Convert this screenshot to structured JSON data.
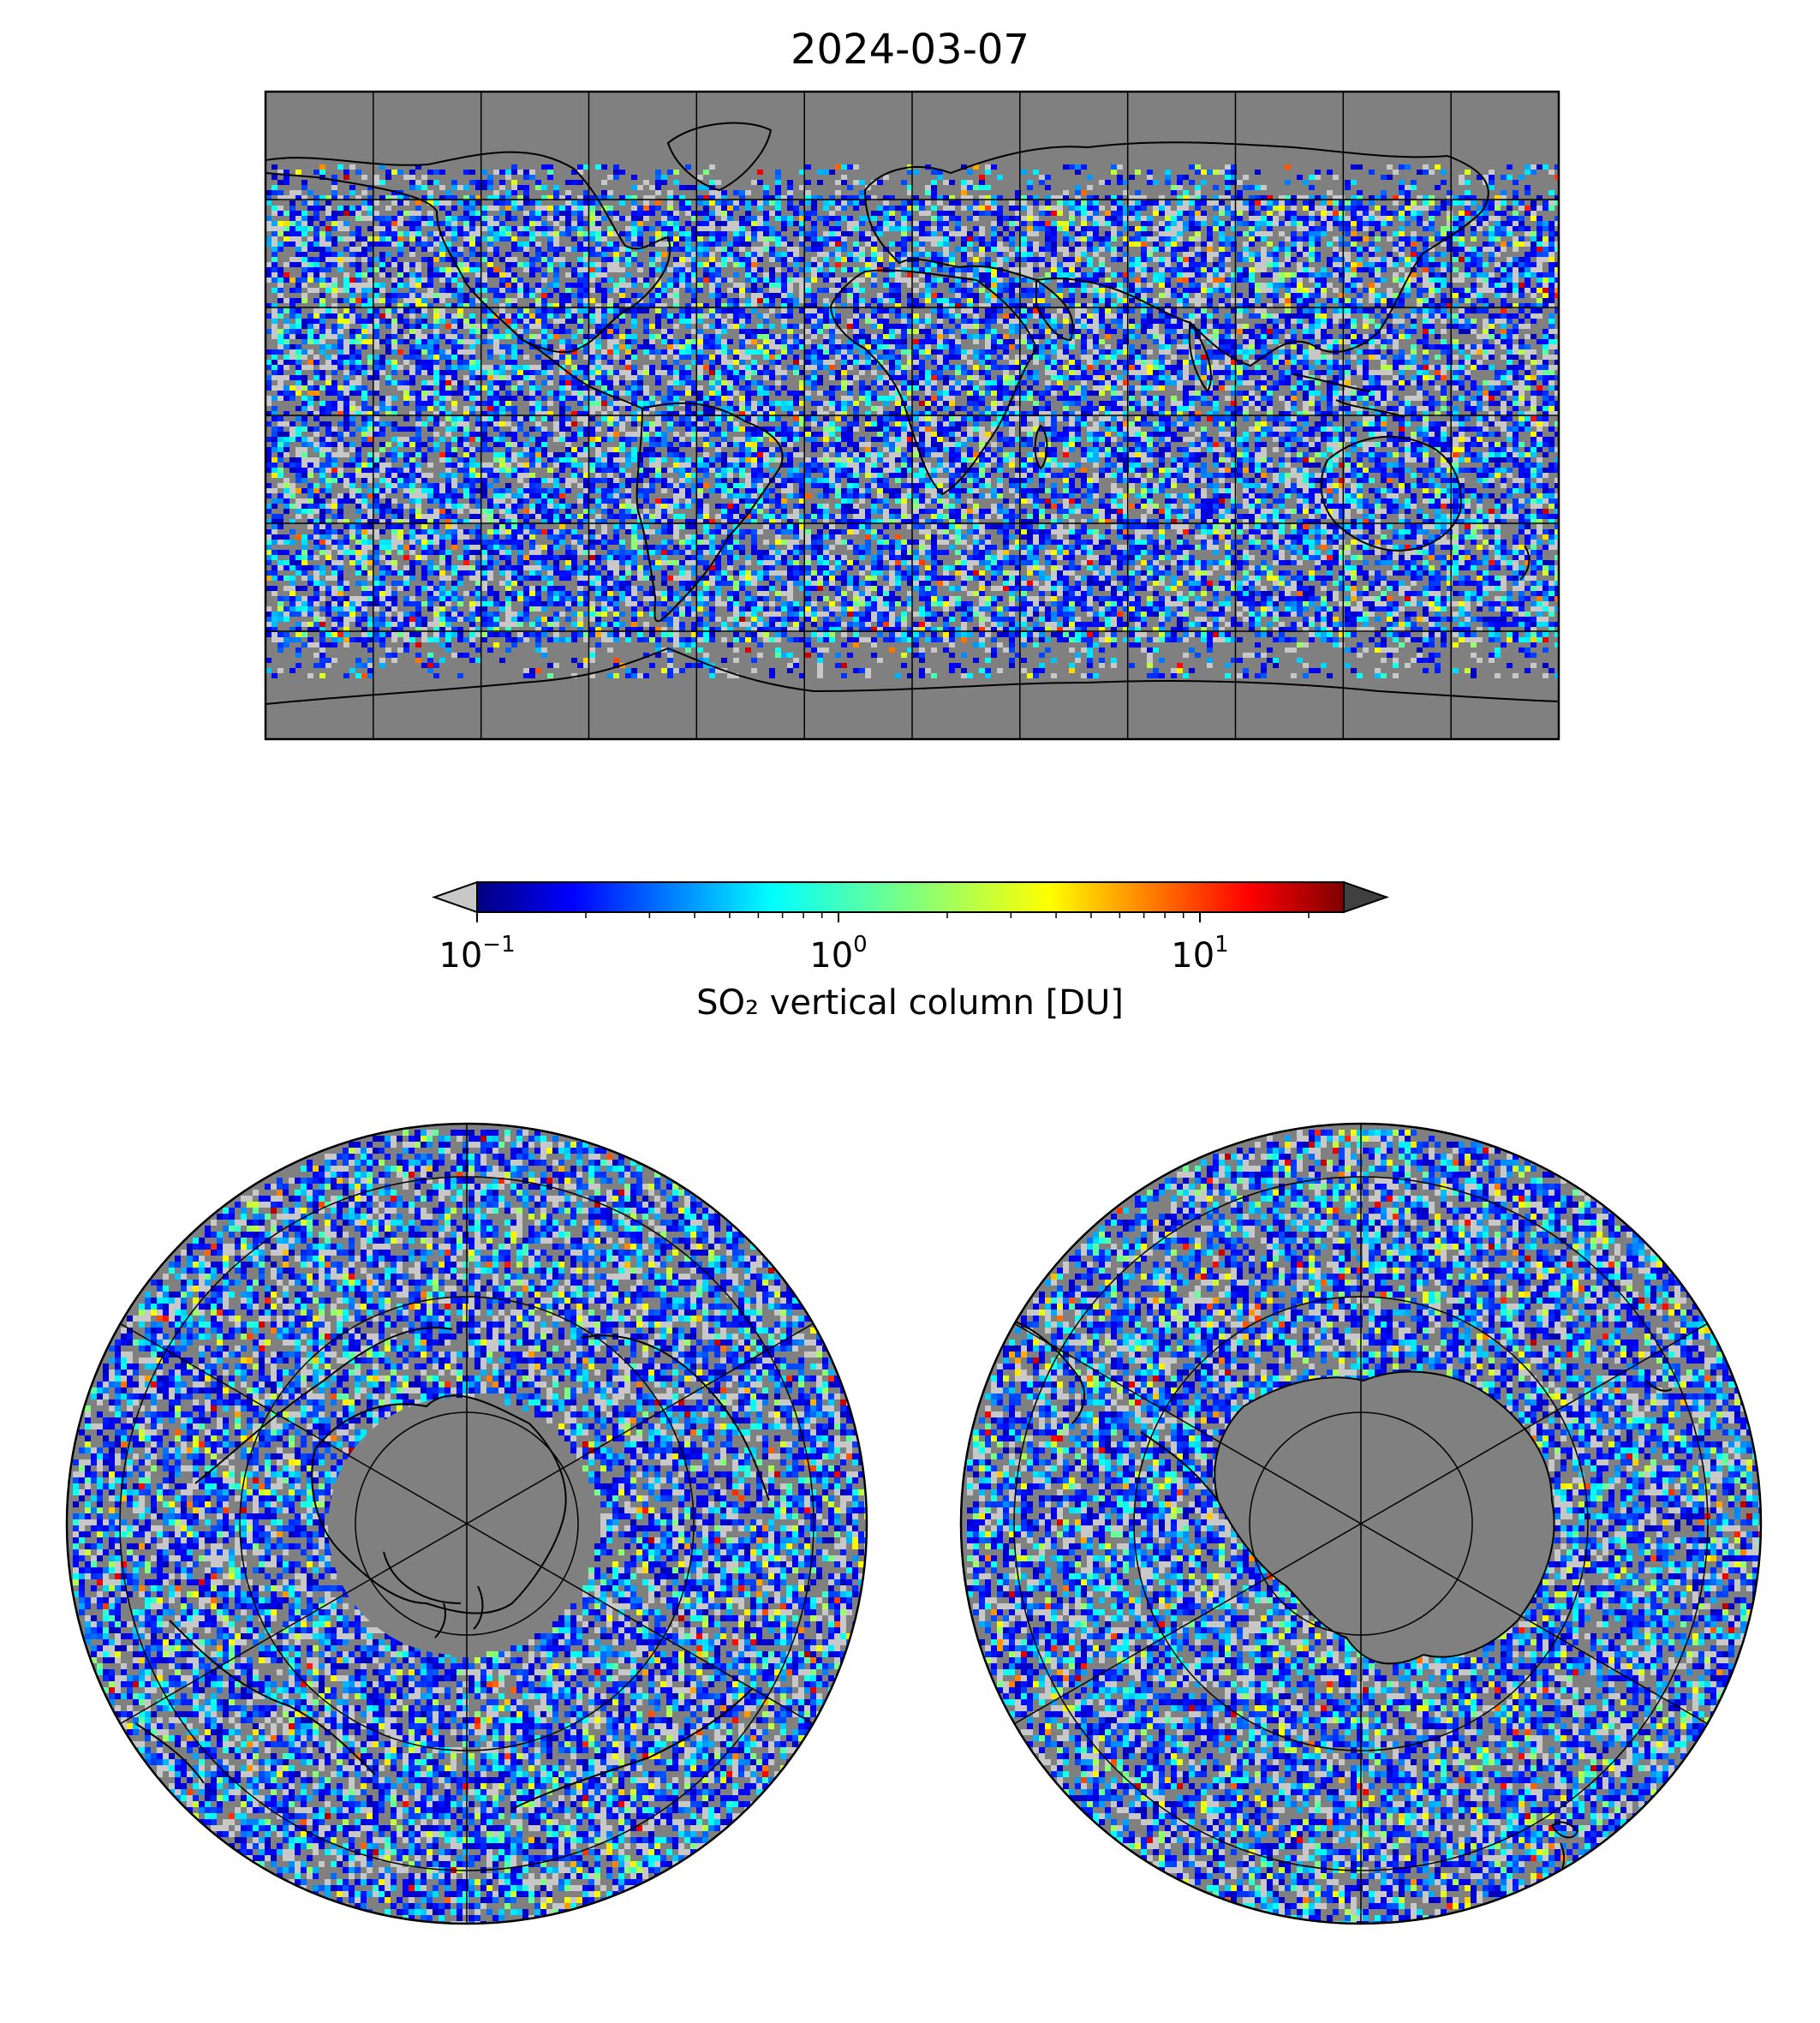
{
  "figure": {
    "title": "2024-03-07"
  },
  "colorbar": {
    "label": "SO₂ vertical column [DU]",
    "scale": "log",
    "colormap": "jet",
    "range": [
      0.1,
      25
    ],
    "under_color": "#c8c8c8",
    "over_color": "#404040",
    "ticks": [
      {
        "base": "10",
        "exp": "−1",
        "value": 0.1
      },
      {
        "base": "10",
        "exp": "0",
        "value": 1
      },
      {
        "base": "10",
        "exp": "1",
        "value": 10
      }
    ],
    "stops": [
      "#00007f",
      "#0000ff",
      "#007fff",
      "#00ffff",
      "#7fff7f",
      "#ffff00",
      "#ff7f00",
      "#ff0000",
      "#7f0000"
    ]
  },
  "maps": {
    "background_color": "#808080",
    "coastline_color": "#000000",
    "world": {
      "projection": "equirectangular",
      "meridian_step_deg": 30,
      "parallel_step_deg": 30
    },
    "north": {
      "projection": "north-polar-stereographic"
    },
    "south": {
      "projection": "south-polar-stereographic"
    }
  }
}
